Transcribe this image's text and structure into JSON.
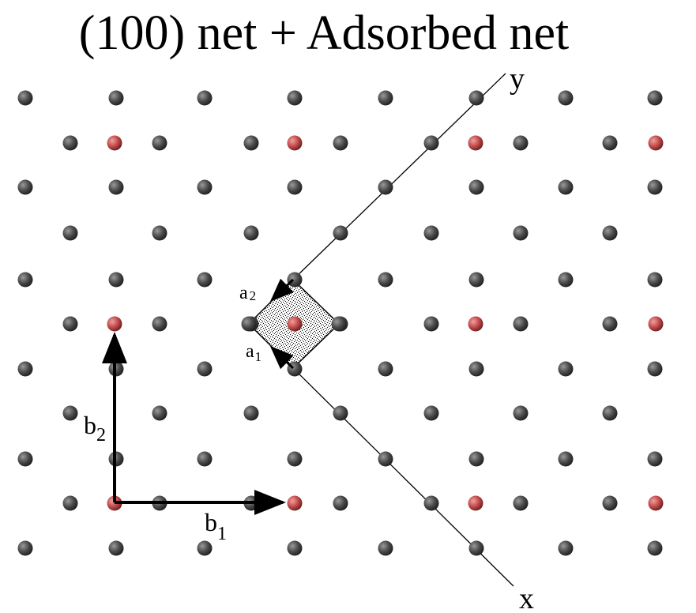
{
  "title": "(100) net + Adsorbed net",
  "labels": {
    "axis_x": "x",
    "axis_y": "y",
    "a1_base": "a",
    "a1_sub": "1",
    "a2_base": "a",
    "a2_sub": "2",
    "b1_base": "b",
    "b1_sub": "1",
    "b2_base": "b",
    "b2_sub": "2"
  },
  "colors": {
    "substrate_atom": "#4a4a4a",
    "adsorbate_atom": "#c24a4a",
    "lines": "#000000"
  }
}
